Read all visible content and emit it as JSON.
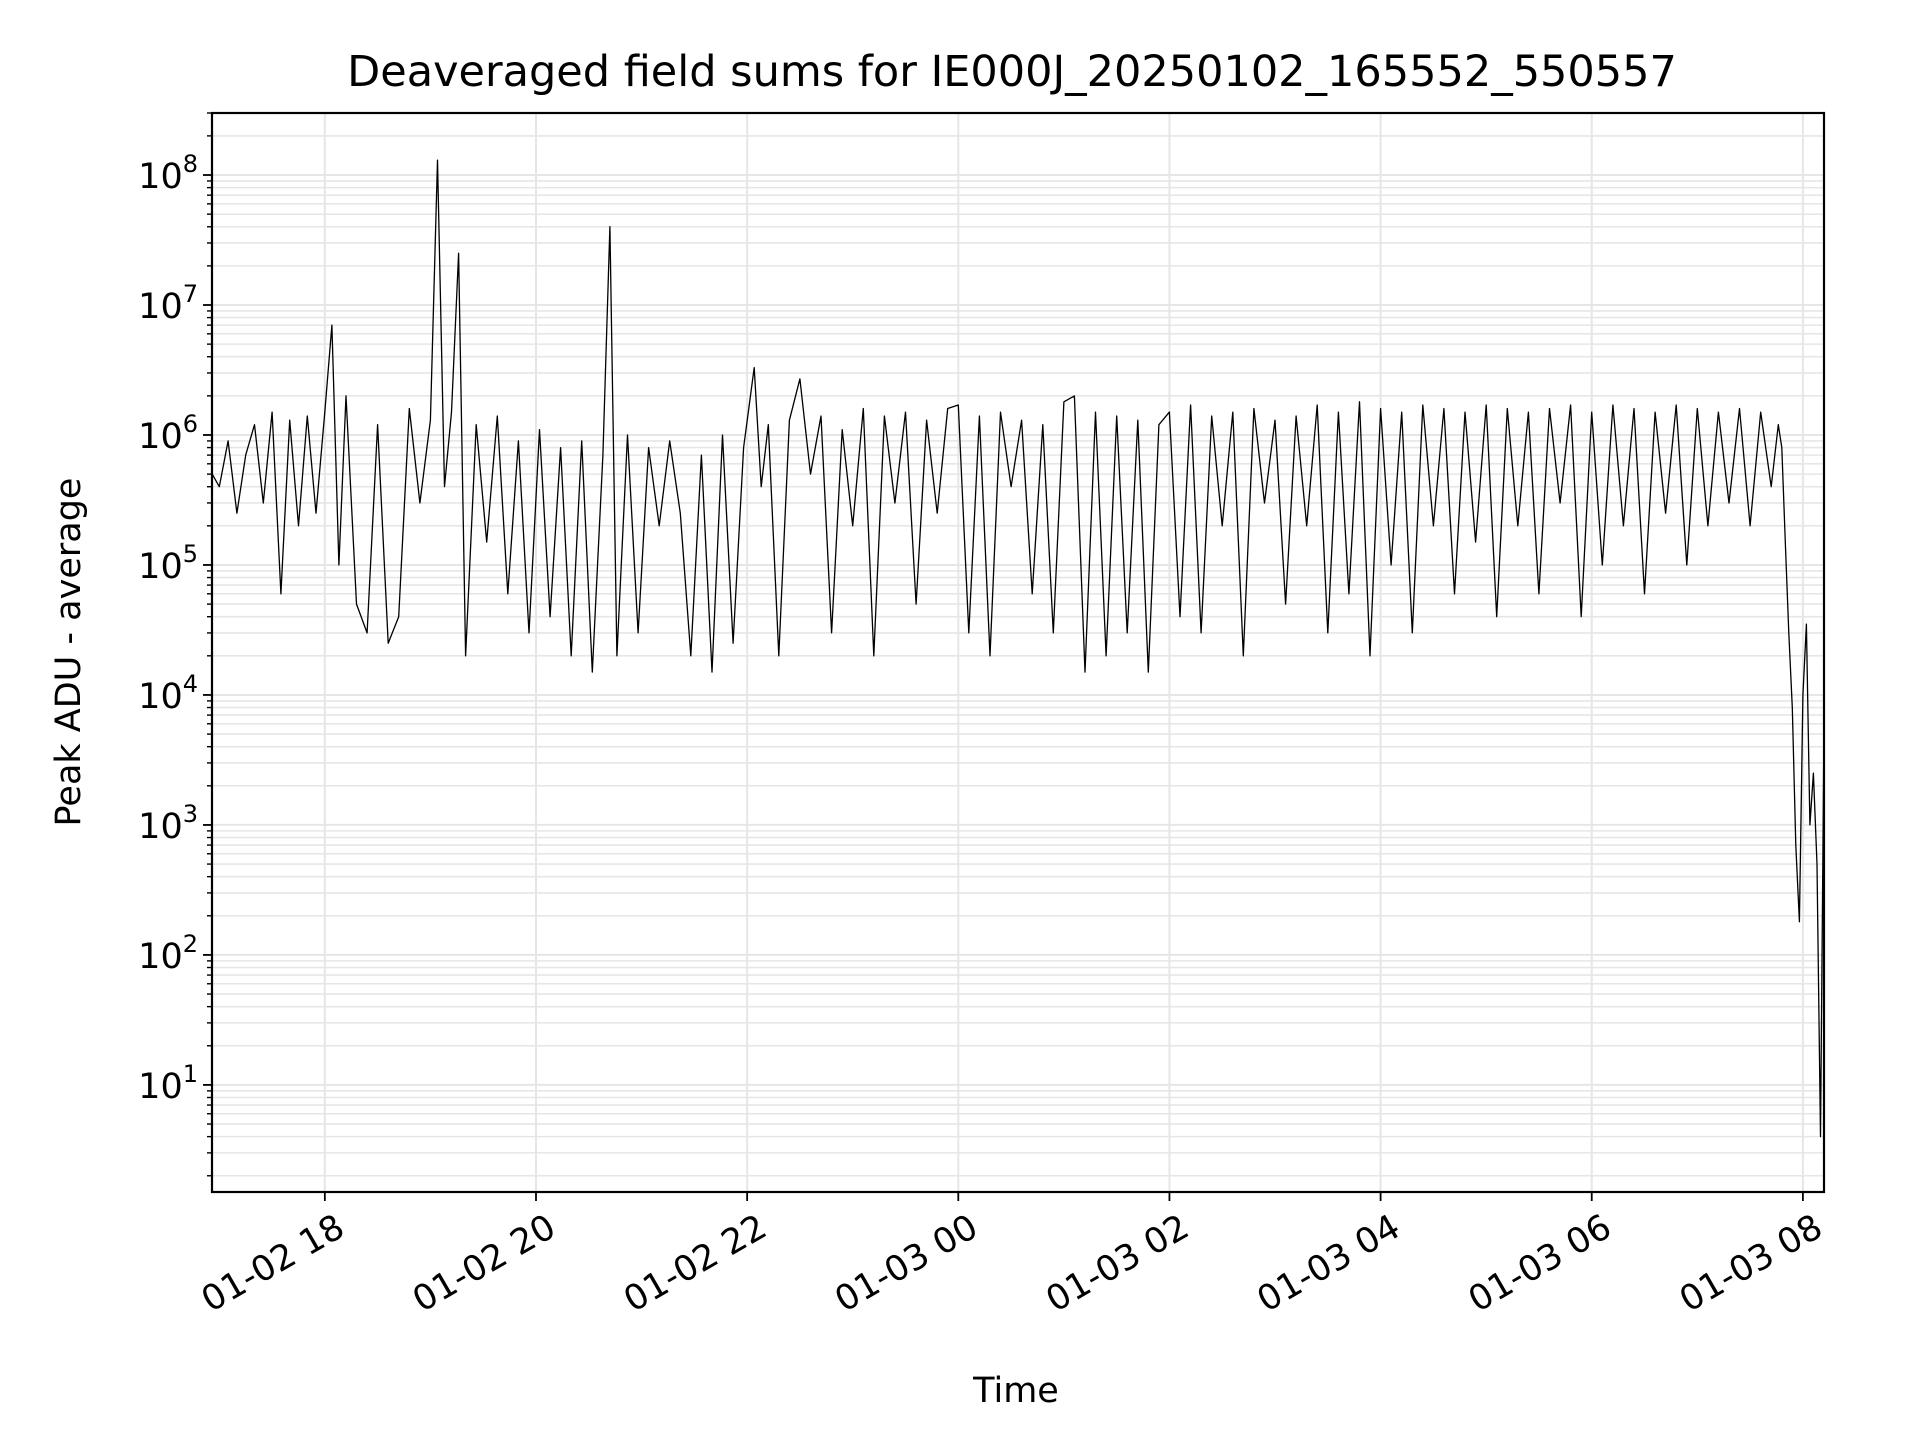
{
  "chart_data": {
    "type": "line",
    "title": "Deaveraged field sums for IE000J_20250102_165552_550557",
    "xlabel": "Time",
    "ylabel": "Peak ADU - average",
    "yscale": "log",
    "ylim": [
      1.5,
      300000000
    ],
    "xlim": [
      "2025-01-02T16:55:52",
      "2025-01-03T08:12:00"
    ],
    "grid": true,
    "line_color": "#000000",
    "grid_color": "#e6e6e6",
    "x_ticks": [
      {
        "t": "2025-01-02T18:00:00",
        "label": "01-02 18"
      },
      {
        "t": "2025-01-02T20:00:00",
        "label": "01-02 20"
      },
      {
        "t": "2025-01-02T22:00:00",
        "label": "01-02 22"
      },
      {
        "t": "2025-01-03T00:00:00",
        "label": "01-03 00"
      },
      {
        "t": "2025-01-03T02:00:00",
        "label": "01-03 02"
      },
      {
        "t": "2025-01-03T04:00:00",
        "label": "01-03 04"
      },
      {
        "t": "2025-01-03T06:00:00",
        "label": "01-03 06"
      },
      {
        "t": "2025-01-03T08:00:00",
        "label": "01-03 08"
      }
    ],
    "y_ticks": [
      {
        "value": 10,
        "base": "10",
        "exp": "1"
      },
      {
        "value": 100,
        "base": "10",
        "exp": "2"
      },
      {
        "value": 1000,
        "base": "10",
        "exp": "3"
      },
      {
        "value": 10000,
        "base": "10",
        "exp": "4"
      },
      {
        "value": 100000,
        "base": "10",
        "exp": "5"
      },
      {
        "value": 1000000,
        "base": "10",
        "exp": "6"
      },
      {
        "value": 10000000,
        "base": "10",
        "exp": "7"
      },
      {
        "value": 100000000,
        "base": "10",
        "exp": "8"
      }
    ],
    "series": [
      {
        "x": [
          "2025-01-02T16:56",
          "2025-01-02T17:00",
          "2025-01-02T17:05",
          "2025-01-02T17:10",
          "2025-01-02T17:15",
          "2025-01-02T17:20",
          "2025-01-02T17:25",
          "2025-01-02T17:30",
          "2025-01-02T17:35",
          "2025-01-02T17:40",
          "2025-01-02T17:45",
          "2025-01-02T17:50",
          "2025-01-02T17:55",
          "2025-01-02T18:00",
          "2025-01-02T18:04",
          "2025-01-02T18:08",
          "2025-01-02T18:12",
          "2025-01-02T18:18",
          "2025-01-02T18:24",
          "2025-01-02T18:30",
          "2025-01-02T18:36",
          "2025-01-02T18:42",
          "2025-01-02T18:48",
          "2025-01-02T18:54",
          "2025-01-02T19:00",
          "2025-01-02T19:04",
          "2025-01-02T19:08",
          "2025-01-02T19:12",
          "2025-01-02T19:16",
          "2025-01-02T19:20",
          "2025-01-02T19:26",
          "2025-01-02T19:32",
          "2025-01-02T19:38",
          "2025-01-02T19:44",
          "2025-01-02T19:50",
          "2025-01-02T19:56",
          "2025-01-02T20:02",
          "2025-01-02T20:08",
          "2025-01-02T20:14",
          "2025-01-02T20:20",
          "2025-01-02T20:26",
          "2025-01-02T20:32",
          "2025-01-02T20:38",
          "2025-01-02T20:42",
          "2025-01-02T20:46",
          "2025-01-02T20:52",
          "2025-01-02T20:58",
          "2025-01-02T21:04",
          "2025-01-02T21:10",
          "2025-01-02T21:16",
          "2025-01-02T21:22",
          "2025-01-02T21:28",
          "2025-01-02T21:34",
          "2025-01-02T21:40",
          "2025-01-02T21:46",
          "2025-01-02T21:52",
          "2025-01-02T21:58",
          "2025-01-02T22:04",
          "2025-01-02T22:08",
          "2025-01-02T22:12",
          "2025-01-02T22:18",
          "2025-01-02T22:24",
          "2025-01-02T22:30",
          "2025-01-02T22:36",
          "2025-01-02T22:42",
          "2025-01-02T22:48",
          "2025-01-02T22:54",
          "2025-01-02T23:00",
          "2025-01-02T23:06",
          "2025-01-02T23:12",
          "2025-01-02T23:18",
          "2025-01-02T23:24",
          "2025-01-02T23:30",
          "2025-01-02T23:36",
          "2025-01-02T23:42",
          "2025-01-02T23:48",
          "2025-01-02T23:54",
          "2025-01-03T00:00",
          "2025-01-03T00:06",
          "2025-01-03T00:12",
          "2025-01-03T00:18",
          "2025-01-03T00:24",
          "2025-01-03T00:30",
          "2025-01-03T00:36",
          "2025-01-03T00:42",
          "2025-01-03T00:48",
          "2025-01-03T00:54",
          "2025-01-03T01:00",
          "2025-01-03T01:06",
          "2025-01-03T01:12",
          "2025-01-03T01:18",
          "2025-01-03T01:24",
          "2025-01-03T01:30",
          "2025-01-03T01:36",
          "2025-01-03T01:42",
          "2025-01-03T01:48",
          "2025-01-03T01:54",
          "2025-01-03T02:00",
          "2025-01-03T02:06",
          "2025-01-03T02:12",
          "2025-01-03T02:18",
          "2025-01-03T02:24",
          "2025-01-03T02:30",
          "2025-01-03T02:36",
          "2025-01-03T02:42",
          "2025-01-03T02:48",
          "2025-01-03T02:54",
          "2025-01-03T03:00",
          "2025-01-03T03:06",
          "2025-01-03T03:12",
          "2025-01-03T03:18",
          "2025-01-03T03:24",
          "2025-01-03T03:30",
          "2025-01-03T03:36",
          "2025-01-03T03:42",
          "2025-01-03T03:48",
          "2025-01-03T03:54",
          "2025-01-03T04:00",
          "2025-01-03T04:06",
          "2025-01-03T04:12",
          "2025-01-03T04:18",
          "2025-01-03T04:24",
          "2025-01-03T04:30",
          "2025-01-03T04:36",
          "2025-01-03T04:42",
          "2025-01-03T04:48",
          "2025-01-03T04:54",
          "2025-01-03T05:00",
          "2025-01-03T05:06",
          "2025-01-03T05:12",
          "2025-01-03T05:18",
          "2025-01-03T05:24",
          "2025-01-03T05:30",
          "2025-01-03T05:36",
          "2025-01-03T05:42",
          "2025-01-03T05:48",
          "2025-01-03T05:54",
          "2025-01-03T06:00",
          "2025-01-03T06:06",
          "2025-01-03T06:12",
          "2025-01-03T06:18",
          "2025-01-03T06:24",
          "2025-01-03T06:30",
          "2025-01-03T06:36",
          "2025-01-03T06:42",
          "2025-01-03T06:48",
          "2025-01-03T06:54",
          "2025-01-03T07:00",
          "2025-01-03T07:06",
          "2025-01-03T07:12",
          "2025-01-03T07:18",
          "2025-01-03T07:24",
          "2025-01-03T07:30",
          "2025-01-03T07:36",
          "2025-01-03T07:42",
          "2025-01-03T07:46",
          "2025-01-03T07:48",
          "2025-01-03T07:50",
          "2025-01-03T07:52",
          "2025-01-03T07:54",
          "2025-01-03T07:56",
          "2025-01-03T07:58",
          "2025-01-03T08:00",
          "2025-01-03T08:02",
          "2025-01-03T08:04",
          "2025-01-03T08:06",
          "2025-01-03T08:08",
          "2025-01-03T08:10",
          "2025-01-03T08:12"
        ],
        "y": [
          500000,
          400000,
          900000,
          250000,
          700000,
          1200000,
          300000,
          1500000,
          60000,
          1300000,
          200000,
          1400000,
          250000,
          1500000,
          7000000,
          100000,
          2000000,
          50000,
          30000,
          1200000,
          25000,
          40000,
          1600000,
          300000,
          1300000,
          130000000,
          400000,
          1500000,
          25000000,
          20000,
          1200000,
          150000,
          1400000,
          60000,
          900000,
          30000,
          1100000,
          40000,
          800000,
          20000,
          900000,
          15000,
          700000,
          40000000,
          20000,
          1000000,
          30000,
          800000,
          200000,
          900000,
          250000,
          20000,
          700000,
          15000,
          1000000,
          25000,
          800000,
          3300000,
          400000,
          1200000,
          20000,
          1300000,
          2700000,
          500000,
          1400000,
          30000,
          1100000,
          200000,
          1600000,
          20000,
          1400000,
          300000,
          1500000,
          50000,
          1300000,
          250000,
          1600000,
          1700000,
          30000,
          1400000,
          20000,
          1500000,
          400000,
          1300000,
          60000,
          1200000,
          30000,
          1800000,
          2000000,
          15000,
          1500000,
          20000,
          1400000,
          30000,
          1300000,
          15000,
          1200000,
          1500000,
          40000,
          1700000,
          30000,
          1400000,
          200000,
          1500000,
          20000,
          1600000,
          300000,
          1300000,
          50000,
          1400000,
          200000,
          1700000,
          30000,
          1500000,
          60000,
          1800000,
          20000,
          1600000,
          100000,
          1500000,
          30000,
          1700000,
          200000,
          1600000,
          60000,
          1500000,
          150000,
          1700000,
          40000,
          1600000,
          200000,
          1500000,
          60000,
          1600000,
          300000,
          1700000,
          40000,
          1500000,
          100000,
          1700000,
          200000,
          1600000,
          60000,
          1500000,
          250000,
          1700000,
          100000,
          1600000,
          200000,
          1500000,
          300000,
          1600000,
          200000,
          1500000,
          400000,
          1200000,
          800000,
          150000,
          30000,
          8000,
          700,
          180,
          10000,
          35000,
          1000,
          2500,
          500,
          4,
          6000
        ]
      }
    ]
  }
}
